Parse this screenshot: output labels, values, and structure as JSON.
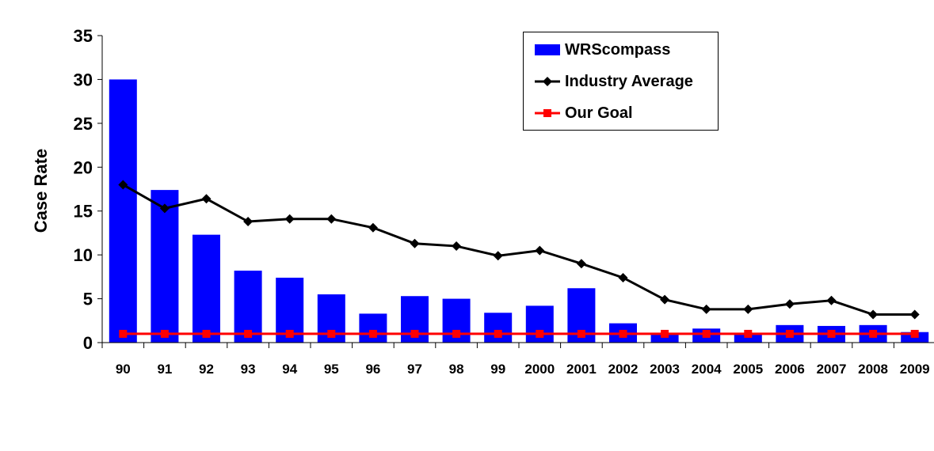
{
  "chart_data": {
    "type": "bar",
    "title": "",
    "xlabel": "",
    "ylabel": "Case Rate",
    "ylim": [
      0,
      35
    ],
    "yticks": [
      0,
      5,
      10,
      15,
      20,
      25,
      30,
      35
    ],
    "categories": [
      "90",
      "91",
      "92",
      "93",
      "94",
      "95",
      "96",
      "97",
      "98",
      "99",
      "2000",
      "2001",
      "2002",
      "2003",
      "2004",
      "2005",
      "2006",
      "2007",
      "2008",
      "2009"
    ],
    "series": [
      {
        "name": "WRScompass",
        "type": "bar",
        "color": "#0000ff",
        "values": [
          30.0,
          17.4,
          12.3,
          8.2,
          7.4,
          5.5,
          3.3,
          5.3,
          5.0,
          3.4,
          4.2,
          6.2,
          2.2,
          1.1,
          1.6,
          1.0,
          2.0,
          1.9,
          2.0,
          1.2
        ]
      },
      {
        "name": "Industry Average",
        "type": "line",
        "color": "#000000",
        "marker": "diamond",
        "values": [
          18.0,
          15.3,
          16.4,
          13.8,
          14.1,
          14.1,
          13.1,
          11.3,
          11.0,
          9.9,
          10.5,
          9.0,
          7.4,
          4.9,
          3.8,
          3.8,
          4.4,
          4.8,
          3.2,
          3.2
        ]
      },
      {
        "name": "Our Goal",
        "type": "line",
        "color": "#ff0000",
        "marker": "square",
        "values": [
          1,
          1,
          1,
          1,
          1,
          1,
          1,
          1,
          1,
          1,
          1,
          1,
          1,
          1,
          1,
          1,
          1,
          1,
          1,
          1
        ]
      }
    ],
    "legend_position": "top-right",
    "grid": false
  }
}
